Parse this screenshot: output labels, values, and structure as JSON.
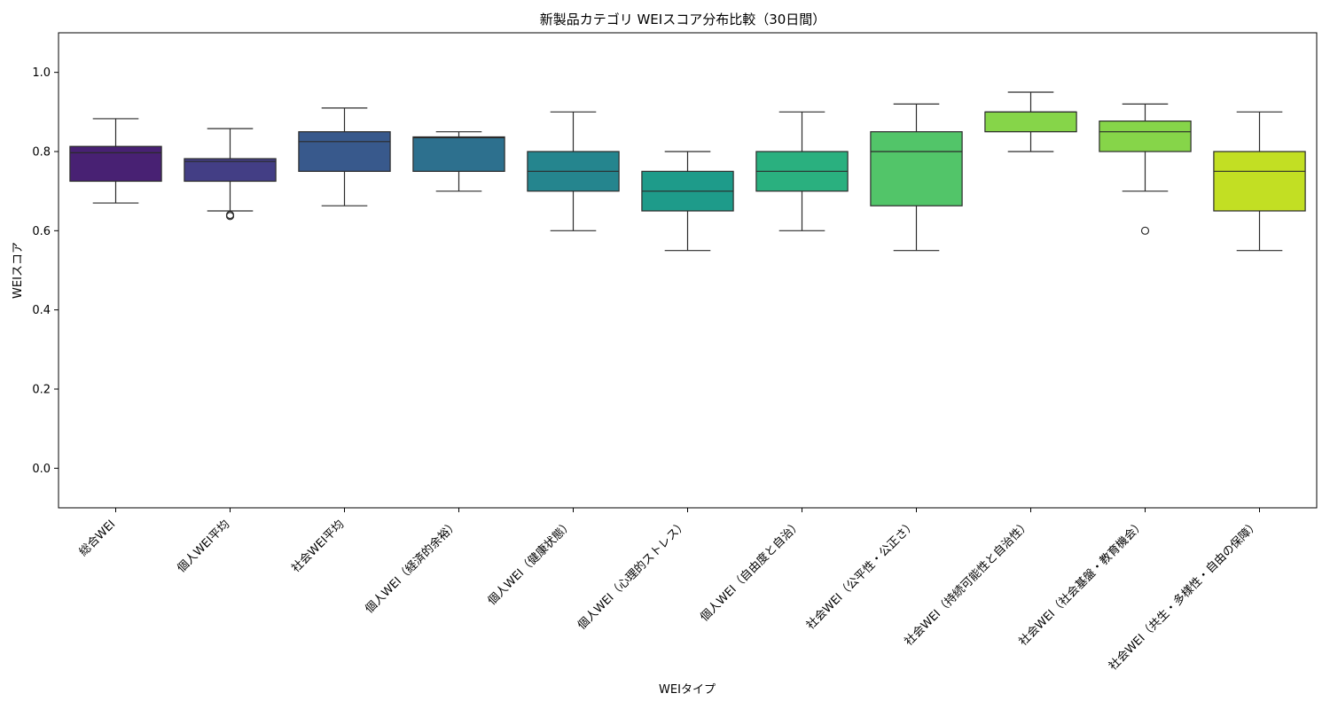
{
  "chart_data": {
    "type": "box",
    "title": "新製品カテゴリ WEIスコア分布比較（30日間）",
    "xlabel": "WEIタイプ",
    "ylabel": "WEIスコア",
    "ylim": [
      -0.1,
      1.1
    ],
    "yticks": [
      "0.0",
      "0.2",
      "0.4",
      "0.6",
      "0.8",
      "1.0"
    ],
    "grid": false,
    "legend": "none",
    "categories": [
      "総合WEI",
      "個人WEI平均",
      "社会WEI平均",
      "個人WEI（経済的余裕）",
      "個人WEI（健康状態）",
      "個人WEI（心理的ストレス）",
      "個人WEI（自由度と自治）",
      "社会WEI（公平性・公正さ）",
      "社会WEI（持続可能性と自治性）",
      "社会WEI（社会基盤・教育機会）",
      "社会WEI（共生・多様性・自由の保障）"
    ],
    "boxes": [
      {
        "whisker_low": 0.67,
        "q1": 0.725,
        "median": 0.797,
        "q3": 0.813,
        "whisker_high": 0.883,
        "outliers": [],
        "color": "#482173"
      },
      {
        "whisker_low": 0.65,
        "q1": 0.725,
        "median": 0.775,
        "q3": 0.782,
        "whisker_high": 0.858,
        "outliers": [
          0.637,
          0.64
        ],
        "color": "#433e85"
      },
      {
        "whisker_low": 0.663,
        "q1": 0.75,
        "median": 0.825,
        "q3": 0.85,
        "whisker_high": 0.91,
        "outliers": [],
        "color": "#38598c"
      },
      {
        "whisker_low": 0.7,
        "q1": 0.75,
        "median": 0.835,
        "q3": 0.837,
        "whisker_high": 0.85,
        "outliers": [],
        "color": "#2d708e"
      },
      {
        "whisker_low": 0.6,
        "q1": 0.7,
        "median": 0.75,
        "q3": 0.8,
        "whisker_high": 0.9,
        "outliers": [],
        "color": "#25858e"
      },
      {
        "whisker_low": 0.55,
        "q1": 0.65,
        "median": 0.7,
        "q3": 0.75,
        "whisker_high": 0.8,
        "outliers": [],
        "color": "#1e9b8a"
      },
      {
        "whisker_low": 0.6,
        "q1": 0.7,
        "median": 0.75,
        "q3": 0.8,
        "whisker_high": 0.9,
        "outliers": [],
        "color": "#2ab07f"
      },
      {
        "whisker_low": 0.55,
        "q1": 0.663,
        "median": 0.8,
        "q3": 0.85,
        "whisker_high": 0.92,
        "outliers": [],
        "color": "#52c569"
      },
      {
        "whisker_low": 0.8,
        "q1": 0.85,
        "median": 0.9,
        "q3": 0.9,
        "whisker_high": 0.95,
        "outliers": [],
        "color": "#86d549"
      },
      {
        "whisker_low": 0.7,
        "q1": 0.8,
        "median": 0.85,
        "q3": 0.877,
        "whisker_high": 0.92,
        "outliers": [
          0.6
        ],
        "color": "#86d549"
      },
      {
        "whisker_low": 0.55,
        "q1": 0.65,
        "median": 0.75,
        "q3": 0.8,
        "whisker_high": 0.9,
        "outliers": [],
        "color": "#c2df23"
      }
    ]
  }
}
